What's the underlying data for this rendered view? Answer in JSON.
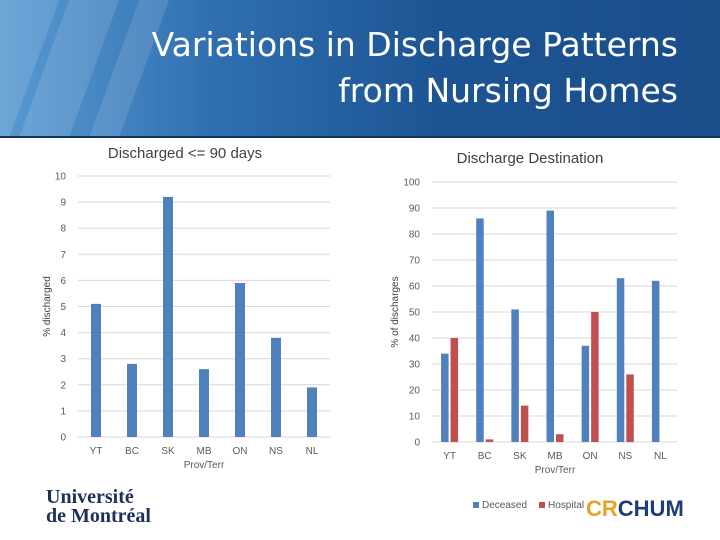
{
  "header": {
    "title_line1": "Variations in Discharge Patterns",
    "title_line2": "from Nursing Homes"
  },
  "colors": {
    "series1": "#4f81bd",
    "series2": "#c0504d",
    "grid": "#d9d9d9",
    "axis_text": "#595959"
  },
  "chart_data": [
    {
      "type": "bar",
      "title": "Discharged <= 90 days",
      "xlabel": "Prov/Terr",
      "ylabel": "% discharged",
      "categories": [
        "YT",
        "BC",
        "SK",
        "MB",
        "ON",
        "NS",
        "NL"
      ],
      "series": [
        {
          "values": [
            5.1,
            2.8,
            9.2,
            2.6,
            5.9,
            3.8,
            1.9
          ]
        }
      ],
      "ylim": [
        0,
        10
      ],
      "yticks": [
        0,
        1,
        2,
        3,
        4,
        5,
        6,
        7,
        8,
        9,
        10
      ],
      "grid": true
    },
    {
      "type": "bar",
      "title": "Discharge Destination",
      "xlabel": "Prov/Terr",
      "ylabel": "% of discharges",
      "categories": [
        "YT",
        "BC",
        "SK",
        "MB",
        "ON",
        "NS",
        "NL"
      ],
      "series": [
        {
          "name": "Deceased",
          "values": [
            34,
            86,
            51,
            89,
            37,
            63,
            62
          ]
        },
        {
          "name": "Hospital",
          "values": [
            40,
            1,
            14,
            3,
            50,
            26,
            0
          ]
        }
      ],
      "ylim": [
        0,
        100
      ],
      "yticks": [
        0,
        10,
        20,
        30,
        40,
        50,
        60,
        70,
        80,
        90,
        100
      ],
      "grid": true,
      "legend": "bottom"
    }
  ],
  "logos": {
    "udem_line1": "Université",
    "udem_line2": "de Montréal",
    "chum_cr": "CR",
    "chum_name": "CHUM"
  }
}
